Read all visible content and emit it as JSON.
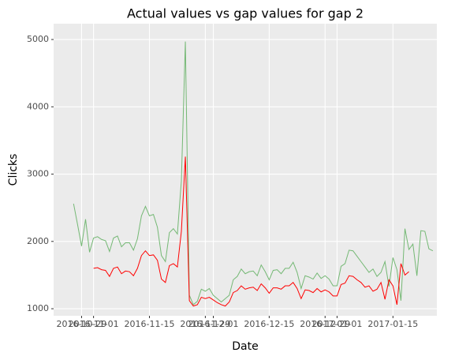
{
  "chart_data": {
    "type": "line",
    "title": "Actual values vs gap values for gap 2",
    "x_label": "Date",
    "y_label": "Clicks",
    "x": [
      "2016-10-27",
      "2016-10-28",
      "2016-10-29",
      "2016-10-30",
      "2016-10-31",
      "2016-11-01",
      "2016-11-02",
      "2016-11-03",
      "2016-11-04",
      "2016-11-05",
      "2016-11-06",
      "2016-11-07",
      "2016-11-08",
      "2016-11-09",
      "2016-11-10",
      "2016-11-11",
      "2016-11-12",
      "2016-11-13",
      "2016-11-14",
      "2016-11-15",
      "2016-11-16",
      "2016-11-17",
      "2016-11-18",
      "2016-11-19",
      "2016-11-20",
      "2016-11-21",
      "2016-11-22",
      "2016-11-23",
      "2016-11-24",
      "2016-11-25",
      "2016-11-26",
      "2016-11-27",
      "2016-11-28",
      "2016-11-29",
      "2016-11-30",
      "2016-12-01",
      "2016-12-02",
      "2016-12-03",
      "2016-12-04",
      "2016-12-05",
      "2016-12-06",
      "2016-12-07",
      "2016-12-08",
      "2016-12-09",
      "2016-12-10",
      "2016-12-11",
      "2016-12-12",
      "2016-12-13",
      "2016-12-14",
      "2016-12-15",
      "2016-12-16",
      "2016-12-17",
      "2016-12-18",
      "2016-12-19",
      "2016-12-20",
      "2016-12-21",
      "2016-12-22",
      "2016-12-23",
      "2016-12-24",
      "2016-12-25",
      "2016-12-26",
      "2016-12-27",
      "2016-12-28",
      "2016-12-29",
      "2016-12-30",
      "2016-12-31",
      "2017-01-01",
      "2017-01-02",
      "2017-01-03",
      "2017-01-04",
      "2017-01-05",
      "2017-01-06",
      "2017-01-07",
      "2017-01-08",
      "2017-01-09",
      "2017-01-10",
      "2017-01-11",
      "2017-01-12",
      "2017-01-13",
      "2017-01-14",
      "2017-01-15",
      "2017-01-16",
      "2017-01-17",
      "2017-01-18",
      "2017-01-19",
      "2017-01-20",
      "2017-01-21",
      "2017-01-22",
      "2017-01-23",
      "2017-01-24",
      "2017-01-25"
    ],
    "series": [
      {
        "color": "#74b874",
        "values": [
          2560,
          2250,
          1930,
          2330,
          1840,
          2050,
          2070,
          2030,
          2010,
          1850,
          2050,
          2080,
          1920,
          1980,
          1980,
          1870,
          2040,
          2380,
          2520,
          2380,
          2400,
          2210,
          1790,
          1700,
          2130,
          2190,
          2110,
          2900,
          4970,
          1200,
          1060,
          1110,
          1290,
          1260,
          1300,
          1200,
          1150,
          1100,
          1150,
          1200,
          1430,
          1480,
          1590,
          1520,
          1550,
          1560,
          1490,
          1650,
          1550,
          1430,
          1570,
          1580,
          1520,
          1600,
          1600,
          1690,
          1540,
          1300,
          1490,
          1470,
          1440,
          1530,
          1450,
          1490,
          1440,
          1340,
          1340,
          1630,
          1670,
          1870,
          1860,
          1780,
          1700,
          1620,
          1540,
          1590,
          1480,
          1540,
          1700,
          1330,
          1760,
          1580,
          1120,
          2190,
          1880,
          1960,
          1490,
          2160,
          2150,
          1890,
          1860
        ]
      },
      {
        "color": "#ff0000",
        "values": [
          null,
          null,
          null,
          null,
          null,
          1600,
          1610,
          1580,
          1570,
          1480,
          1600,
          1620,
          1520,
          1560,
          1550,
          1490,
          1600,
          1790,
          1860,
          1790,
          1800,
          1720,
          1440,
          1390,
          1640,
          1670,
          1620,
          2150,
          3260,
          1120,
          1040,
          1060,
          1170,
          1150,
          1170,
          1130,
          1090,
          1060,
          1040,
          1100,
          1240,
          1270,
          1340,
          1290,
          1310,
          1320,
          1270,
          1370,
          1310,
          1230,
          1310,
          1310,
          1290,
          1340,
          1340,
          1390,
          1300,
          1150,
          1280,
          1270,
          1240,
          1300,
          1250,
          1280,
          1250,
          1190,
          1190,
          1360,
          1380,
          1490,
          1480,
          1430,
          1390,
          1320,
          1340,
          1260,
          1290,
          1390,
          1140,
          1430,
          1340,
          1060,
          1670,
          1500,
          1550,
          null,
          null,
          null,
          null,
          null,
          null
        ]
      }
    ],
    "xlim": [
      "2016-10-22",
      "2017-01-26"
    ],
    "xticks": [
      "2016-10-29",
      "2016-11-01",
      "2016-11-15",
      "2016-11-29",
      "2016-12-01",
      "2016-12-15",
      "2016-12-29",
      "2017-01-01",
      "2017-01-15"
    ],
    "ylim": [
      895,
      5235
    ],
    "yticks": [
      1000,
      2000,
      3000,
      4000,
      5000
    ],
    "grid": true
  }
}
